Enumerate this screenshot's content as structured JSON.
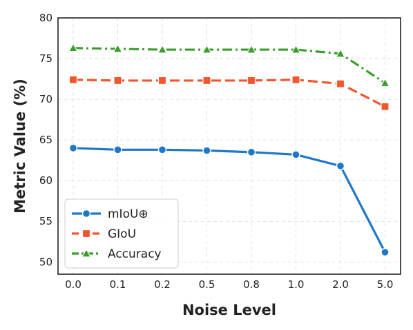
{
  "chart_data": {
    "type": "line",
    "categories": [
      "0.0",
      "0.1",
      "0.2",
      "0.5",
      "0.8",
      "1.0",
      "2.0",
      "5.0"
    ],
    "xlabel": "Noise Level",
    "ylabel": "Metric Value (%)",
    "ylim": [
      48.5,
      80
    ],
    "yticks": [
      "50",
      "55",
      "60",
      "65",
      "70",
      "75",
      "80"
    ],
    "grid": true,
    "legend_position": "lower-left",
    "series": [
      {
        "name": "mIoU⊕",
        "color": "#1f77c9",
        "marker": "circle",
        "line_style": "solid",
        "values": [
          64.0,
          63.8,
          63.8,
          63.7,
          63.5,
          63.2,
          61.8,
          51.2
        ]
      },
      {
        "name": "GIoU",
        "color": "#f4552b",
        "marker": "square",
        "line_style": "dashed",
        "values": [
          72.4,
          72.3,
          72.3,
          72.3,
          72.3,
          72.4,
          71.9,
          69.1
        ]
      },
      {
        "name": "Accuracy",
        "color": "#3a9e2a",
        "marker": "triangle",
        "line_style": "dashdot",
        "values": [
          76.3,
          76.2,
          76.1,
          76.1,
          76.1,
          76.1,
          75.6,
          72.0
        ]
      }
    ]
  }
}
